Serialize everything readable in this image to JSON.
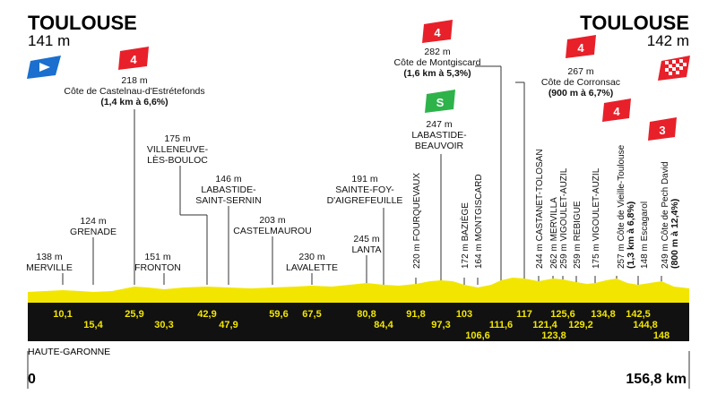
{
  "start": {
    "city": "TOULOUSE",
    "alt": "141 m"
  },
  "finish": {
    "city": "TOULOUSE",
    "alt": "142 m"
  },
  "region": "HAUTE-GARONNE",
  "distance": {
    "start": "0",
    "end": "156,8 km"
  },
  "colors": {
    "profile": "#f2e600",
    "band": "#111111",
    "climb": "#e8202a",
    "sprint": "#2db34a",
    "start_flag": "#1a6fcf"
  },
  "climbs": [
    {
      "cat": "4",
      "alt": "218 m",
      "name": "Côte de Castelnau-d'Estrétefonds",
      "info": "(1,4 km à 6,6%)"
    },
    {
      "cat": "4",
      "alt": "282 m",
      "name": "Côte de Montgiscard",
      "info": "(1,6 km à 5,3%)"
    },
    {
      "cat": "4",
      "alt": "267 m",
      "name": "Côte de Corronsac",
      "info": "(900 m à 6,7%)"
    },
    {
      "cat": "4",
      "alt": "257 m",
      "name": "Côte de Vieille-Toulouse",
      "info": "(1,3 km à 6,8%)"
    },
    {
      "cat": "3",
      "alt": "249 m",
      "name": "Côte de Pech David",
      "info": "(800 m à 12,4%)"
    }
  ],
  "sprint": {
    "label": "S",
    "alt": "247 m",
    "place": [
      "LABASTIDE-",
      "BEAUVOIR"
    ]
  },
  "towns": [
    {
      "alt": "138 m",
      "name": [
        "MERVILLE"
      ]
    },
    {
      "alt": "124 m",
      "name": [
        "GRENADE"
      ]
    },
    {
      "alt": "151 m",
      "name": [
        "FRONTON"
      ]
    },
    {
      "alt": "175 m",
      "name": [
        "VILLENEUVE-",
        "LÈS-BOULOC"
      ]
    },
    {
      "alt": "146 m",
      "name": [
        "LABASTIDE-",
        "SAINT-SERNIN"
      ]
    },
    {
      "alt": "203 m",
      "name": [
        "CASTELMAUROU"
      ]
    },
    {
      "alt": "230 m",
      "name": [
        "LAVALETTE"
      ]
    },
    {
      "alt": "191 m",
      "name": [
        "SAINTE-FOY-",
        "D'AIGREFEUILLE"
      ]
    },
    {
      "alt": "245 m",
      "name": [
        "LANTA"
      ]
    }
  ],
  "vertical_towns": [
    "220 m FOURQUEVAUX",
    "172 m BAZIÈGE",
    "164 m MONTGISCARD",
    "244 m CASTANET-TOLOSAN",
    "262 m MERVILLA",
    "259 m VIGOULET-AUZIL",
    "259 m REBIGUE",
    "175 m VIGOULET-AUZIL",
    "148 m Escagarol"
  ],
  "km_top": [
    "10,1",
    "25,9",
    "42,9",
    "59,6",
    "67,5",
    "80,8",
    "91,8",
    "103",
    "117",
    "125,6",
    "134,8",
    "142,5"
  ],
  "km_bottom": [
    "15,4",
    "30,3",
    "47,9",
    "84,4",
    "97,3",
    "111,6",
    "121,4",
    "129,2",
    "144,8"
  ],
  "km_bottom2": [
    "106,6",
    "123,8",
    "148"
  ]
}
